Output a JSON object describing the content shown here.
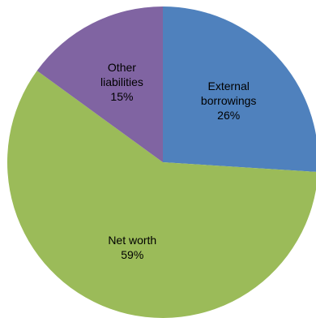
{
  "chart_data": {
    "type": "pie",
    "title": "",
    "slices": [
      {
        "lines": [
          "External",
          "borrowings"
        ],
        "label": "External borrowings",
        "value": 26,
        "value_label": "26%",
        "color": "#4f81bd"
      },
      {
        "lines": [
          "Net worth"
        ],
        "label": "Net worth",
        "value": 59,
        "value_label": "59%",
        "color": "#9bbb59"
      },
      {
        "lines": [
          "Other",
          "liabilities"
        ],
        "label": "Other liabilities",
        "value": 15,
        "value_label": "15%",
        "color": "#8064a2"
      }
    ],
    "start_angle_deg": 0,
    "direction": "clockwise",
    "legend": "none",
    "labels": "inside"
  }
}
